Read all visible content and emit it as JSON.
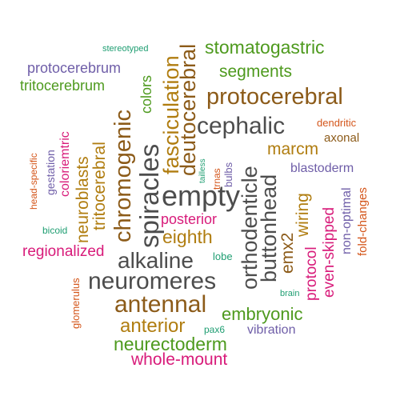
{
  "colors": {
    "brown": "#8C5B19",
    "olive": "#B07D10",
    "dark": "#4D4D4D",
    "magenta": "#D81B7A",
    "green": "#4E9A1E",
    "purple": "#6F5EA8",
    "orange": "#D4561B",
    "teal": "#1F9E72"
  },
  "words": [
    {
      "text": "stereotyped",
      "color": "teal"
    },
    {
      "text": "stomatogastric",
      "color": "green"
    },
    {
      "text": "protocerebrum",
      "color": "purple"
    },
    {
      "text": "segments",
      "color": "green"
    },
    {
      "text": "tritocerebrum",
      "color": "green"
    },
    {
      "text": "colors",
      "color": "green"
    },
    {
      "text": "fasciculation",
      "color": "olive"
    },
    {
      "text": "deutocerebral",
      "color": "brown"
    },
    {
      "text": "protocerebral",
      "color": "brown"
    },
    {
      "text": "cephalic",
      "color": "dark"
    },
    {
      "text": "dendritic",
      "color": "orange"
    },
    {
      "text": "axonal",
      "color": "brown"
    },
    {
      "text": "marcm",
      "color": "olive"
    },
    {
      "text": "blastoderm",
      "color": "purple"
    },
    {
      "text": "head-specific",
      "color": "orange"
    },
    {
      "text": "gestation",
      "color": "purple"
    },
    {
      "text": "coloriemtric",
      "color": "magenta"
    },
    {
      "text": "neuroblasts",
      "color": "olive"
    },
    {
      "text": "tritocerebral",
      "color": "olive"
    },
    {
      "text": "chromogenic",
      "color": "brown"
    },
    {
      "text": "spiracles",
      "color": "dark"
    },
    {
      "text": "tailless",
      "color": "teal"
    },
    {
      "text": "trnas",
      "color": "orange"
    },
    {
      "text": "bulbs",
      "color": "purple"
    },
    {
      "text": "orthodenticle",
      "color": "dark"
    },
    {
      "text": "buttonhead",
      "color": "dark"
    },
    {
      "text": "emx2",
      "color": "brown"
    },
    {
      "text": "wiring",
      "color": "olive"
    },
    {
      "text": "protocol",
      "color": "magenta"
    },
    {
      "text": "even-skipped",
      "color": "magenta"
    },
    {
      "text": "non-optimal",
      "color": "purple"
    },
    {
      "text": "fold-changes",
      "color": "orange"
    },
    {
      "text": "empty",
      "color": "dark"
    },
    {
      "text": "posterior",
      "color": "magenta"
    },
    {
      "text": "eighth",
      "color": "olive"
    },
    {
      "text": "bicoid",
      "color": "teal"
    },
    {
      "text": "regionalized",
      "color": "magenta"
    },
    {
      "text": "alkaline",
      "color": "dark"
    },
    {
      "text": "lobe",
      "color": "teal"
    },
    {
      "text": "glomerulus",
      "color": "orange"
    },
    {
      "text": "neuromeres",
      "color": "dark"
    },
    {
      "text": "brain",
      "color": "teal"
    },
    {
      "text": "antennal",
      "color": "brown"
    },
    {
      "text": "embryonic",
      "color": "green"
    },
    {
      "text": "anterior",
      "color": "olive"
    },
    {
      "text": "pax6",
      "color": "teal"
    },
    {
      "text": "vibration",
      "color": "purple"
    },
    {
      "text": "neurectoderm",
      "color": "green"
    },
    {
      "text": "whole-mount",
      "color": "magenta"
    }
  ]
}
